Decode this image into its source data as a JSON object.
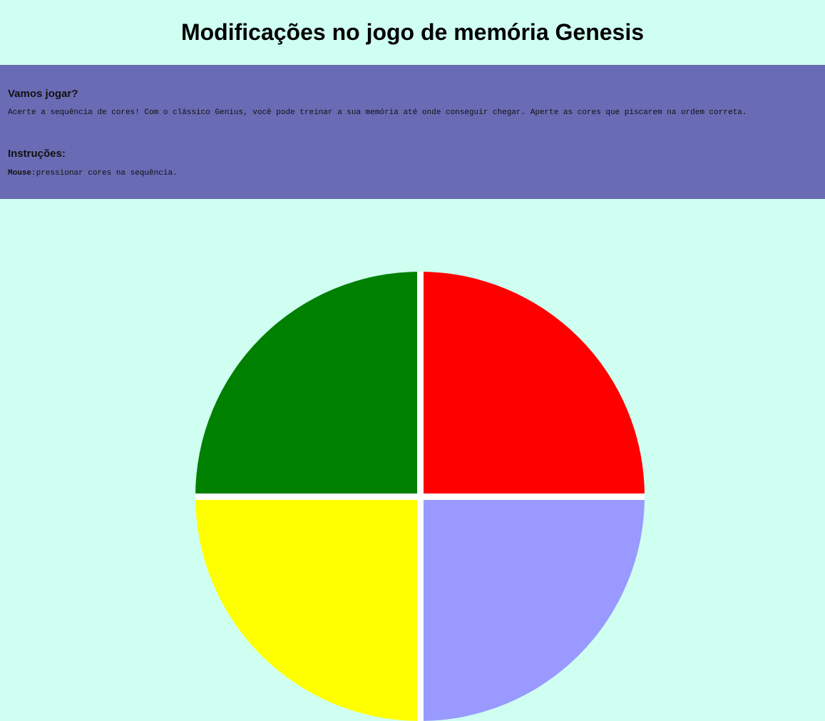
{
  "header": {
    "title": "Modificações no jogo de memória Genesis"
  },
  "intro": {
    "heading": "Vamos jogar?",
    "text": "Acerte a sequência de cores! Com o clássico Genius, você pode treinar a sua memória até onde conseguir chegar. Aperte as cores que piscarem na ordem correta."
  },
  "instructions": {
    "heading": "Instruções:",
    "control_label": "Mouse:",
    "control_text": "pressionar cores na sequência."
  },
  "game": {
    "pads": [
      {
        "name": "green",
        "color": "#008000"
      },
      {
        "name": "red",
        "color": "#ff0000"
      },
      {
        "name": "yellow",
        "color": "#ffff00"
      },
      {
        "name": "blue",
        "color": "#9999ff"
      }
    ]
  },
  "colors": {
    "background": "#cffff0",
    "panel": "#696bb4"
  }
}
